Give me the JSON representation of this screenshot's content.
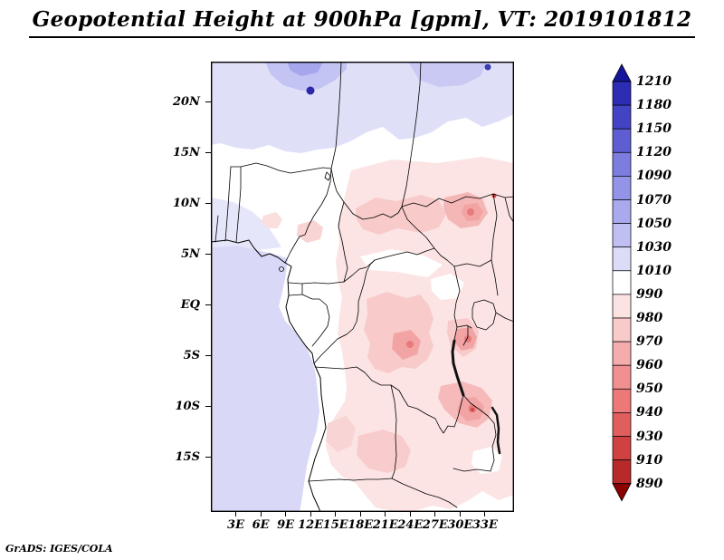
{
  "header": {
    "title": "Geopotential Height at 900hPa [gpm], VT: 2019101812"
  },
  "footer": {
    "credit": "GrADS: IGES/COLA"
  },
  "chart_data": {
    "type": "heatmap",
    "title": "Geopotential Height at 900hPa [gpm], VT: 2019101812",
    "variable": "Geopotential Height",
    "level": "900hPa",
    "units": "gpm",
    "valid_time": "2019101812",
    "projection": "lat-lon map (central Africa)",
    "lon_range": [
      0,
      36.5
    ],
    "lat_range": [
      -20.4,
      24
    ],
    "grid": "on-map filled contours, country borders overlaid",
    "x_ticks": [
      {
        "label": "3E",
        "lon": 3
      },
      {
        "label": "6E",
        "lon": 6
      },
      {
        "label": "9E",
        "lon": 9
      },
      {
        "label": "12E",
        "lon": 12
      },
      {
        "label": "15E",
        "lon": 15
      },
      {
        "label": "18E",
        "lon": 18
      },
      {
        "label": "21E",
        "lon": 21
      },
      {
        "label": "24E",
        "lon": 24
      },
      {
        "label": "27E",
        "lon": 27
      },
      {
        "label": "30E",
        "lon": 30
      },
      {
        "label": "33E",
        "lon": 33
      }
    ],
    "y_ticks": [
      {
        "label": "20N",
        "lat": 20
      },
      {
        "label": "15N",
        "lat": 15
      },
      {
        "label": "10N",
        "lat": 10
      },
      {
        "label": "5N",
        "lat": 5
      },
      {
        "label": "EQ",
        "lat": 0
      },
      {
        "label": "5S",
        "lat": -5
      },
      {
        "label": "10S",
        "lat": -10
      },
      {
        "label": "15S",
        "lat": -15
      }
    ],
    "colorbar": {
      "levels": [
        1210,
        1180,
        1150,
        1120,
        1090,
        1070,
        1050,
        1030,
        1010,
        990,
        980,
        970,
        960,
        950,
        940,
        930,
        910,
        890
      ],
      "segment_colors": [
        "#2c2cb4",
        "#4343c6",
        "#5e5ed2",
        "#7d7de0",
        "#9393e8",
        "#a9a9ee",
        "#bfbff3",
        "#dcdcf8",
        "#ffffff",
        "#fce3e3",
        "#f8caca",
        "#f4acac",
        "#f09090",
        "#ec7878",
        "#e05e5e",
        "#d04242",
        "#b82a2a"
      ],
      "arrow_top_color": "#15159b",
      "arrow_bottom_color": "#8b0000"
    },
    "field_estimate": {
      "description": "Approximate geopotential height (gpm) read from fill colors; blue/lavender = high (>1010), pink/red = low (<990)",
      "lons": [
        0,
        5,
        10,
        15,
        20,
        25,
        30,
        35
      ],
      "lats": [
        20,
        15,
        10,
        5,
        0,
        -5,
        -10,
        -15,
        -20
      ],
      "values_gpm": [
        [
          1048,
          1050,
          1060,
          1052,
          1046,
          1044,
          1048,
          1046
        ],
        [
          1022,
          1018,
          1016,
          1018,
          1010,
          1006,
          1002,
          1004
        ],
        [
          1014,
          1010,
          1006,
          1000,
          992,
          986,
          978,
          974
        ],
        [
          1020,
          1012,
          1004,
          996,
          990,
          986,
          982,
          986
        ],
        [
          1030,
          1024,
          1002,
          994,
          986,
          982,
          986,
          990
        ],
        [
          1034,
          1028,
          1006,
          992,
          980,
          976,
          972,
          984
        ],
        [
          1034,
          1030,
          1010,
          994,
          986,
          980,
          974,
          978
        ],
        [
          1038,
          1030,
          1012,
          990,
          986,
          990,
          994,
          998
        ],
        [
          1040,
          1034,
          1016,
          1000,
          996,
          1000,
          1000,
          1004
        ]
      ]
    }
  }
}
